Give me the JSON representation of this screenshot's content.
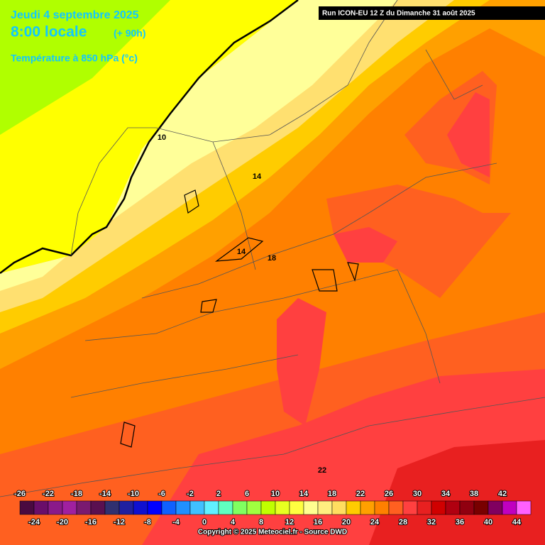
{
  "header": {
    "date": "Jeudi 4 septembre 2025",
    "time": "8:00 locale",
    "lead": "(+ 90h)",
    "field": "Température à 850 hPa (°c)",
    "run": "Run ICON-EU 12 Z du Dimanche 31 août 2025"
  },
  "contour_labels": [
    10,
    14,
    14,
    18,
    22
  ],
  "legend": {
    "labels": [
      -26,
      -24,
      -22,
      -20,
      -18,
      -16,
      -14,
      -12,
      -10,
      -8,
      -6,
      -4,
      -2,
      0,
      2,
      4,
      6,
      8,
      10,
      12,
      14,
      16,
      18,
      20,
      22,
      24,
      26,
      28,
      30,
      32,
      34,
      36,
      38,
      40,
      42,
      44
    ],
    "colors": [
      "#4a0a40",
      "#6a0e6a",
      "#8a1a8a",
      "#a020a0",
      "#7a1a70",
      "#5a1050",
      "#303070",
      "#2020a0",
      "#1010d0",
      "#0000ff",
      "#1060ff",
      "#2090ff",
      "#40c0ff",
      "#60f0ff",
      "#60ffc0",
      "#80ff60",
      "#a0ff40",
      "#c0ff00",
      "#e8ff20",
      "#ffff40",
      "#ffff90",
      "#ffee80",
      "#ffdd60",
      "#ffcc00",
      "#ffa000",
      "#ff8000",
      "#ff6020",
      "#ff4040",
      "#e82020",
      "#d00000",
      "#b00010",
      "#900010",
      "#780000",
      "#800060",
      "#c000c0",
      "#ff60ff"
    ]
  },
  "copyright": "Copyright © 2025 Meteociel.fr - Source DWD"
}
